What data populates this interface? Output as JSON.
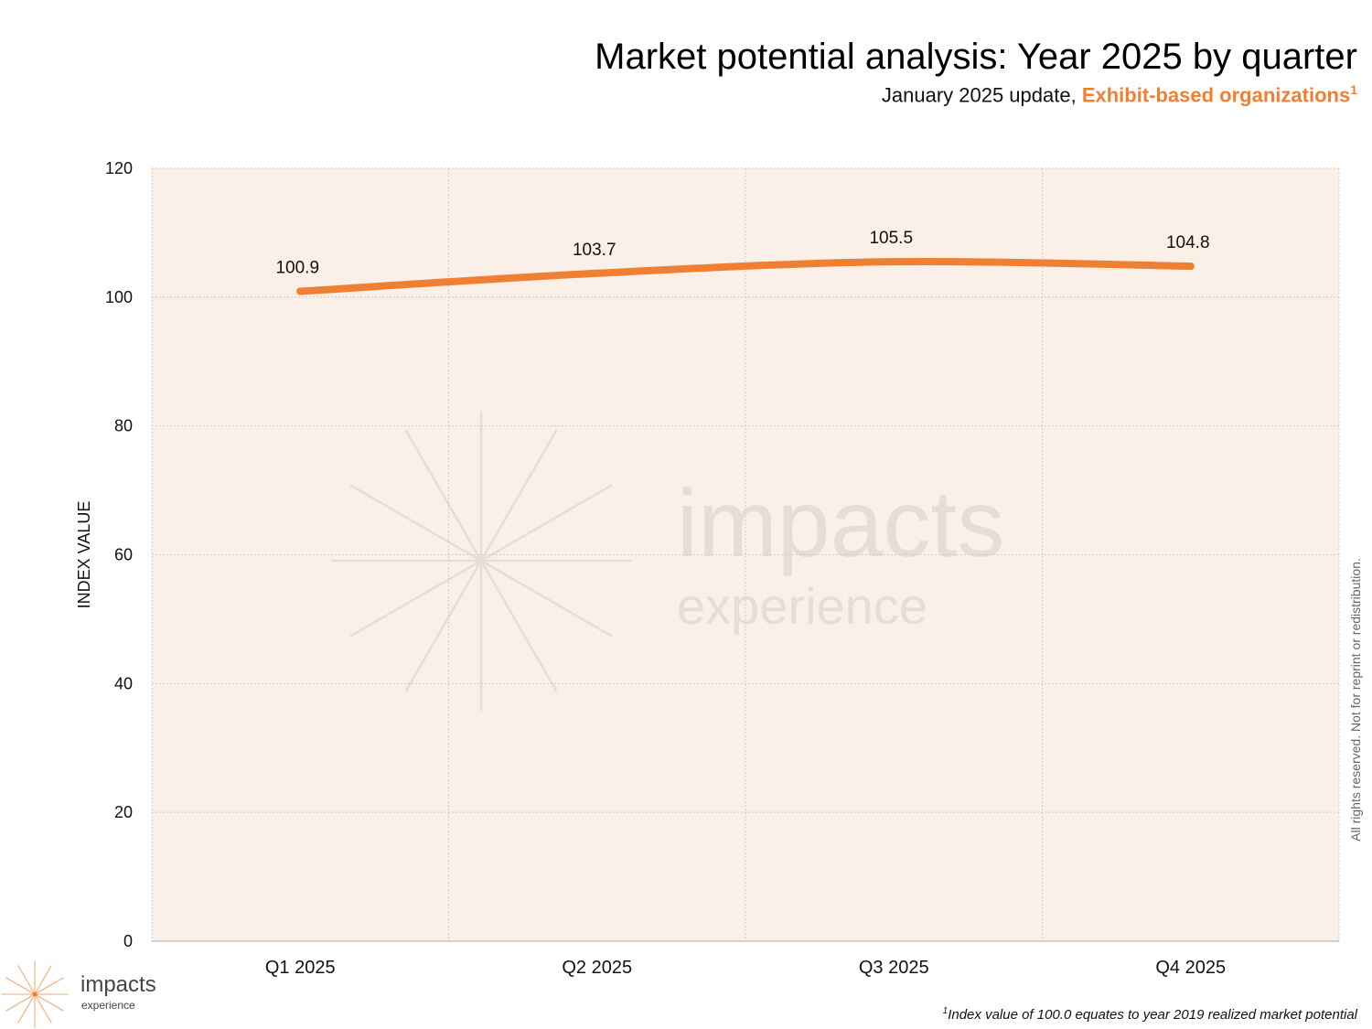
{
  "header": {
    "title": "Market potential analysis: Year 2025 by quarter",
    "subtitle_prefix": "January 2025 update, ",
    "subtitle_highlight": "Exhibit-based organizations",
    "subtitle_superscript": "1"
  },
  "chart_data": {
    "type": "line",
    "title": "Market potential analysis: Year 2025 by quarter",
    "subtitle": "January 2025 update, Exhibit-based organizations",
    "categories": [
      "Q1 2025",
      "Q2 2025",
      "Q3 2025",
      "Q4 2025"
    ],
    "series": [
      {
        "name": "Exhibit-based organizations",
        "values": [
          100.9,
          103.7,
          105.5,
          104.8
        ],
        "labels": [
          "100.9",
          "103.7",
          "105.5",
          "104.8"
        ]
      }
    ],
    "xlabel": "",
    "ylabel": "INDEX VALUE",
    "ylim": [
      0,
      120
    ],
    "yticks": [
      0,
      20,
      40,
      60,
      80,
      100,
      120
    ],
    "ytick_labels": [
      "0",
      "20",
      "40",
      "60",
      "80",
      "100",
      "120"
    ],
    "grid": true,
    "watermark": {
      "line1": "impacts",
      "line2": "experience"
    }
  },
  "footnote": {
    "superscript": "1",
    "text": "Index value of 100.0 equates to year 2019 realized market potential"
  },
  "rights_text": "All rights reserved. Not for reprint or redistribution.",
  "logo": {
    "name": "impacts",
    "sub": "experience"
  },
  "colors": {
    "line": "#ef7f32",
    "accent": "#ef7f32",
    "plot_background": "#faf0e8",
    "grid": "#cccccc",
    "watermark": "#e6ddd6"
  }
}
